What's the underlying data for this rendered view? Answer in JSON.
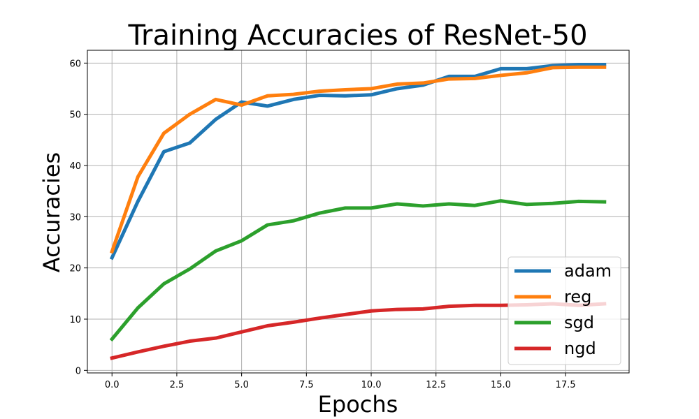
{
  "chart_data": {
    "type": "line",
    "title": "Training Accuracies of ResNet-50",
    "xlabel": "Epochs",
    "ylabel": "Accuracies",
    "xlim": [
      -0.95,
      19.95
    ],
    "ylim": [
      -0.5,
      62.5
    ],
    "xticks": [
      0.0,
      2.5,
      5.0,
      7.5,
      10.0,
      12.5,
      15.0,
      17.5
    ],
    "xtick_labels": [
      "0.0",
      "2.5",
      "5.0",
      "7.5",
      "10.0",
      "12.5",
      "15.0",
      "17.5"
    ],
    "yticks": [
      0,
      10,
      20,
      30,
      40,
      50,
      60
    ],
    "ytick_labels": [
      "0",
      "10",
      "20",
      "30",
      "40",
      "50",
      "60"
    ],
    "grid": true,
    "legend_position": "lower-right",
    "x": [
      0,
      1,
      2,
      3,
      4,
      5,
      6,
      7,
      8,
      9,
      10,
      11,
      12,
      13,
      14,
      15,
      16,
      17,
      18,
      19
    ],
    "series": [
      {
        "name": "adam",
        "color": "#1f77b4",
        "values": [
          22.0,
          33.0,
          42.7,
          44.4,
          49.0,
          52.4,
          51.6,
          52.9,
          53.7,
          53.6,
          53.8,
          55.0,
          55.7,
          57.4,
          57.4,
          58.9,
          58.9,
          59.5,
          59.7,
          59.7
        ]
      },
      {
        "name": "reg",
        "color": "#ff7f0e",
        "values": [
          23.2,
          37.8,
          46.3,
          50.0,
          52.9,
          51.8,
          53.6,
          53.9,
          54.5,
          54.8,
          55.0,
          55.9,
          56.1,
          56.9,
          57.0,
          57.6,
          58.1,
          59.1,
          59.2,
          59.2
        ]
      },
      {
        "name": "sgd",
        "color": "#2ca02c",
        "values": [
          6.1,
          12.2,
          16.9,
          19.8,
          23.3,
          25.3,
          28.4,
          29.2,
          30.7,
          31.7,
          31.7,
          32.5,
          32.1,
          32.5,
          32.2,
          33.1,
          32.4,
          32.6,
          33.0,
          32.9
        ]
      },
      {
        "name": "ngd",
        "color": "#d62728",
        "values": [
          2.4,
          3.6,
          4.7,
          5.7,
          6.3,
          7.5,
          8.7,
          9.4,
          10.2,
          10.9,
          11.6,
          11.9,
          12.0,
          12.5,
          12.7,
          12.7,
          12.8,
          13.0,
          12.7,
          13.0
        ]
      }
    ]
  }
}
